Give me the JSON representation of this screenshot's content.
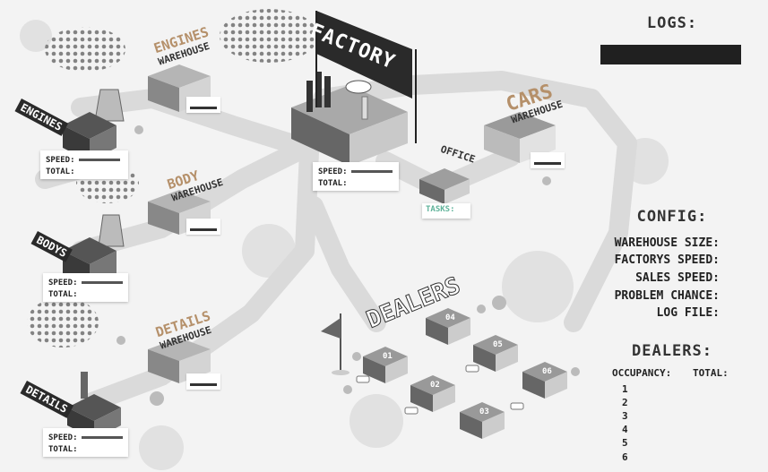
{
  "map": {
    "factory_sign": "FACTORY",
    "office_sign": "OFFICE",
    "dealers_sign": "DEALERS",
    "tasks_label": "TASKS:",
    "suppliers": [
      {
        "sign": "ENGINES",
        "speed_label": "SPEED:",
        "total_label": "TOTAL:"
      },
      {
        "sign": "BODYS",
        "speed_label": "SPEED:",
        "total_label": "TOTAL:"
      },
      {
        "sign": "DETAILS",
        "speed_label": "SPEED:",
        "total_label": "TOTAL:"
      }
    ],
    "warehouses": [
      {
        "line1": "ENGINES",
        "line2": "WAREHOUSE"
      },
      {
        "line1": "BODY",
        "line2": "WAREHOUSE"
      },
      {
        "line1": "DETAILS",
        "line2": "WAREHOUSE"
      },
      {
        "line1": "CARS",
        "line2": "WAREHOUSE"
      }
    ],
    "factory_stats": {
      "speed_label": "SPEED:",
      "total_label": "TOTAL:"
    },
    "dealer_buildings": [
      "01",
      "02",
      "03",
      "04",
      "05",
      "06"
    ]
  },
  "logs": {
    "title": "LOGS:"
  },
  "config": {
    "title": "CONFIG:",
    "labels": [
      "WAREHOUSE SIZE:",
      "FACTORYS SPEED:",
      "SALES SPEED:",
      "PROBLEM CHANCE:",
      "LOG FILE:"
    ]
  },
  "dealers_panel": {
    "title": "DEALERS:",
    "occupancy_header": "OCCUPANCY:",
    "total_header": "TOTAL:",
    "rows": [
      "1",
      "2",
      "3",
      "4",
      "5",
      "6"
    ]
  },
  "colors": {
    "warehouse_text": "#b5906a",
    "tasks_text": "#5fb39a",
    "dark": "#2a2a2a"
  }
}
